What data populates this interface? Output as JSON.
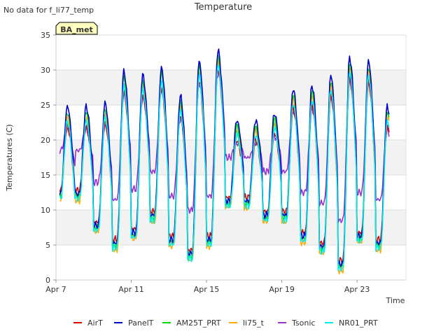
{
  "chart_data": {
    "type": "line",
    "title": "Temperature",
    "note": "No data for f_li77_temp",
    "badge": "BA_met",
    "xlabel": "Time",
    "ylabel": "Temperatures (C)",
    "xlim_days": [
      7,
      25.6
    ],
    "ylim": [
      0,
      35
    ],
    "y_ticks": [
      0,
      5,
      10,
      15,
      20,
      25,
      30,
      35
    ],
    "x_ticks": [
      {
        "day": 7,
        "label": "Apr 7"
      },
      {
        "day": 11,
        "label": "Apr 11"
      },
      {
        "day": 15,
        "label": "Apr 15"
      },
      {
        "day": 19,
        "label": "Apr 19"
      },
      {
        "day": 23,
        "label": "Apr 23"
      }
    ],
    "grid": true,
    "legend_placement": "bottom",
    "daily_extremes": {
      "days": [
        8,
        9,
        10,
        11,
        12,
        13,
        14,
        15,
        16,
        17,
        18,
        19,
        20,
        21,
        22,
        23,
        24
      ],
      "min": [
        12,
        7.5,
        5,
        6.5,
        9,
        5.5,
        3.5,
        5.5,
        11,
        11,
        9,
        9,
        6,
        4.5,
        2,
        6,
        5
      ],
      "max": [
        24.5,
        25,
        29.5,
        29,
        30,
        26,
        31,
        32.5,
        22.5,
        22.5,
        23.5,
        27,
        27.5,
        29,
        31.5,
        31,
        24.5
      ],
      "end_value": 8
    },
    "series": [
      {
        "name": "AirT",
        "color": "#dd0000",
        "min_offset": 0.8,
        "max_offset": -2.5
      },
      {
        "name": "PanelT",
        "color": "#0000cc",
        "min_offset": 0.3,
        "max_offset": 0.3
      },
      {
        "name": "AM25T_PRT",
        "color": "#00dd00",
        "min_offset": 0.0,
        "max_offset": -0.5
      },
      {
        "name": "li75_t",
        "color": "#ffaa00",
        "min_offset": -0.6,
        "max_offset": -1.2
      },
      {
        "name": "Tsonic",
        "color": "#9933cc",
        "min_offset": 6.5,
        "max_offset": -3.0
      },
      {
        "name": "NR01_PRT",
        "color": "#00eeee",
        "min_offset": -0.4,
        "max_offset": -1.8
      }
    ]
  }
}
